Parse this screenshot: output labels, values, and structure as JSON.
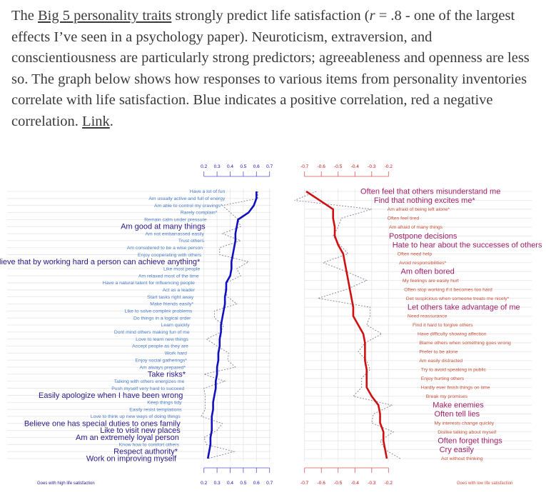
{
  "article": {
    "p1": "The ",
    "link1": "Big 5 personality traits",
    "p2": " strongly predict life satisfaction (",
    "r": "r",
    "p3": " = .8 - one of the largest effects I’ve seen in a psychology paper). Neuroticism, extraversion, and conscientiousness are particularly strong predictors; agreeableness and openness are less so. The graph below shows how responses to various items from personality inventories correlate with life satisfaction. Blue indicates a positive correlation, red a negative correlation. ",
    "link2": "Link",
    "p4": "."
  },
  "chart_data": [
    {
      "type": "line",
      "title": "Goes with high life satisfaction",
      "xlim": [
        0.2,
        0.7
      ],
      "ticks": [
        "0.2",
        "0.3",
        "0.4",
        "0.5",
        "0.6",
        "0.7"
      ],
      "colors": {
        "line": "#1010c0",
        "big": "#2a1a8a",
        "small": "#4a7cc8"
      },
      "items": [
        {
          "label": "Have a lot of fun",
          "big": false,
          "smooth": 0.6,
          "raw": 0.61
        },
        {
          "label": "Am usually active and full of energy",
          "big": false,
          "smooth": 0.6,
          "raw": 0.61
        },
        {
          "label": "Am able to control my cravings*",
          "big": false,
          "smooth": 0.58,
          "raw": 0.34
        },
        {
          "label": "Rarely complain*",
          "big": false,
          "smooth": 0.54,
          "raw": 0.4
        },
        {
          "label": "Remain calm under pressure",
          "big": false,
          "smooth": 0.46,
          "raw": 0.46
        },
        {
          "label": "Am good at many things",
          "big": true,
          "smooth": 0.45,
          "raw": 0.48
        },
        {
          "label": "Am not embarrassed easily",
          "big": false,
          "smooth": 0.44,
          "raw": 0.34
        },
        {
          "label": "Trust others",
          "big": false,
          "smooth": 0.44,
          "raw": 0.48
        },
        {
          "label": "Am considered to be a wise person",
          "big": false,
          "smooth": 0.43,
          "raw": 0.32
        },
        {
          "label": "Enjoy cooperating with others",
          "big": false,
          "smooth": 0.42,
          "raw": 0.32
        },
        {
          "label": "Believe that by working hard a person can achieve anything*",
          "big": true,
          "smooth": 0.41,
          "raw": 0.54
        },
        {
          "label": "Like most people",
          "big": false,
          "smooth": 0.41,
          "raw": 0.45
        },
        {
          "label": "Am relaxed most of the time",
          "big": false,
          "smooth": 0.4,
          "raw": 0.48
        },
        {
          "label": "Have a natural talent for influencing people",
          "big": false,
          "smooth": 0.37,
          "raw": 0.37
        },
        {
          "label": "Act as a leader",
          "big": false,
          "smooth": 0.37,
          "raw": 0.36
        },
        {
          "label": "Start tasks right away",
          "big": false,
          "smooth": 0.36,
          "raw": 0.38
        },
        {
          "label": "Make friends easily*",
          "big": false,
          "smooth": 0.36,
          "raw": 0.45
        },
        {
          "label": "Like to solve complex problems",
          "big": false,
          "smooth": 0.35,
          "raw": 0.28
        },
        {
          "label": "Do things in a logical order",
          "big": false,
          "smooth": 0.34,
          "raw": 0.28
        },
        {
          "label": "Learn quickly",
          "big": false,
          "smooth": 0.33,
          "raw": 0.35
        },
        {
          "label": "Dont mind others making fun of me",
          "big": false,
          "smooth": 0.33,
          "raw": 0.33
        },
        {
          "label": "Love to learn new things",
          "big": false,
          "smooth": 0.32,
          "raw": 0.22
        },
        {
          "label": "Accept people as they are",
          "big": false,
          "smooth": 0.32,
          "raw": 0.3
        },
        {
          "label": "Work hard",
          "big": false,
          "smooth": 0.31,
          "raw": 0.39
        },
        {
          "label": "Enjoy social gatherings*",
          "big": false,
          "smooth": 0.31,
          "raw": 0.38
        },
        {
          "label": "Am always prepared*",
          "big": false,
          "smooth": 0.3,
          "raw": 0.44
        },
        {
          "label": "Take risks*",
          "big": true,
          "smooth": 0.3,
          "raw": 0.2
        },
        {
          "label": "Talking with others energizes me",
          "big": false,
          "smooth": 0.29,
          "raw": 0.36
        },
        {
          "label": "Push myself very hard to succeed",
          "big": false,
          "smooth": 0.29,
          "raw": 0.2
        },
        {
          "label": "Easily apologize when I have been wrong",
          "big": true,
          "smooth": 0.28,
          "raw": 0.21
        },
        {
          "label": "Keep things tidy",
          "big": false,
          "smooth": 0.27,
          "raw": 0.21
        },
        {
          "label": "Easily resist temptations",
          "big": false,
          "smooth": 0.27,
          "raw": 0.21
        },
        {
          "label": "Love to think up new ways of doing things",
          "big": false,
          "smooth": 0.26,
          "raw": 0.18
        },
        {
          "label": "Believe one has special duties to ones family",
          "big": true,
          "smooth": 0.26,
          "raw": 0.34
        },
        {
          "label": "Like to visit new places",
          "big": true,
          "smooth": 0.26,
          "raw": 0.3
        },
        {
          "label": "Am an extremely loyal person",
          "big": true,
          "smooth": 0.25,
          "raw": 0.2
        },
        {
          "label": "Know how to comfort others",
          "big": false,
          "smooth": 0.25,
          "raw": 0.22
        },
        {
          "label": "Respect authority*",
          "big": true,
          "smooth": 0.24,
          "raw": 0.43
        },
        {
          "label": "Work on improving myself",
          "big": true,
          "smooth": 0.23,
          "raw": 0.23
        }
      ]
    },
    {
      "type": "line",
      "title": "Goes with low life satisfaction",
      "xlim": [
        -0.7,
        -0.2
      ],
      "ticks": [
        "-0.7",
        "-0.6",
        "-0.5",
        "-0.4",
        "-0.3",
        "-0.2"
      ],
      "colors": {
        "line": "#d01010",
        "big": "#a0206a",
        "small": "#c8503a"
      },
      "items": [
        {
          "label": "Often feel that others misunderstand me",
          "big": true,
          "smooth": -0.69,
          "raw": -0.63
        },
        {
          "label": "Find that nothing excites me*",
          "big": true,
          "smooth": -0.61,
          "raw": -0.76
        },
        {
          "label": "Am afraid of being left alone*",
          "big": false,
          "smooth": -0.53,
          "raw": -0.3
        },
        {
          "label": "Often feel tired",
          "big": false,
          "smooth": -0.53,
          "raw": -0.48
        },
        {
          "label": "Am afraid of many things",
          "big": false,
          "smooth": -0.52,
          "raw": -0.5
        },
        {
          "label": "Postpone decisions",
          "big": true,
          "smooth": -0.52,
          "raw": -0.53
        },
        {
          "label": "Hate to hear about the successes of others",
          "big": true,
          "smooth": -0.5,
          "raw": -0.49
        },
        {
          "label": "Often need help",
          "big": false,
          "smooth": -0.47,
          "raw": -0.44
        },
        {
          "label": "Avoid responsibilities*",
          "big": false,
          "smooth": -0.46,
          "raw": -0.59
        },
        {
          "label": "Am often bored",
          "big": true,
          "smooth": -0.45,
          "raw": -0.45
        },
        {
          "label": "My feelings are easily hurt",
          "big": false,
          "smooth": -0.44,
          "raw": -0.33
        },
        {
          "label": "Often stop working if it becomes too hard",
          "big": false,
          "smooth": -0.43,
          "raw": -0.45
        },
        {
          "label": "Get suspicious when someone treats me nicely*",
          "big": false,
          "smooth": -0.42,
          "raw": -0.62
        },
        {
          "label": "Let others take advantage of me",
          "big": true,
          "smooth": -0.41,
          "raw": -0.31
        },
        {
          "label": "Need reassurance",
          "big": false,
          "smooth": -0.41,
          "raw": -0.31
        },
        {
          "label": "Find it hard to forgive others",
          "big": false,
          "smooth": -0.38,
          "raw": -0.33
        },
        {
          "label": "Have difficulty showing affection",
          "big": false,
          "smooth": -0.35,
          "raw": -0.24
        },
        {
          "label": "Blame others when something goes wrong",
          "big": false,
          "smooth": -0.34,
          "raw": -0.34
        },
        {
          "label": "Prefer to be alone",
          "big": false,
          "smooth": -0.34,
          "raw": -0.38
        },
        {
          "label": "Am easily distracted",
          "big": false,
          "smooth": -0.34,
          "raw": -0.33
        },
        {
          "label": "Try to avoid speaking in public",
          "big": false,
          "smooth": -0.33,
          "raw": -0.31
        },
        {
          "label": "Enjoy hurting others",
          "big": false,
          "smooth": -0.33,
          "raw": -0.36
        },
        {
          "label": "Hardly ever finish things on time",
          "big": false,
          "smooth": -0.33,
          "raw": -0.36
        },
        {
          "label": "Break my promises",
          "big": false,
          "smooth": -0.3,
          "raw": -0.41
        },
        {
          "label": "Make enemies",
          "big": true,
          "smooth": -0.26,
          "raw": -0.18
        },
        {
          "label": "Often tell lies",
          "big": true,
          "smooth": -0.25,
          "raw": -0.29
        },
        {
          "label": "My interests change quickly",
          "big": false,
          "smooth": -0.25,
          "raw": -0.3
        },
        {
          "label": "Dislike talking about myself",
          "big": false,
          "smooth": -0.23,
          "raw": -0.17
        },
        {
          "label": "Often forget things",
          "big": true,
          "smooth": -0.23,
          "raw": -0.25
        },
        {
          "label": "Cry easily",
          "big": true,
          "smooth": -0.22,
          "raw": -0.22
        },
        {
          "label": "Act without thinking",
          "big": false,
          "smooth": -0.21,
          "raw": -0.13
        }
      ]
    }
  ]
}
